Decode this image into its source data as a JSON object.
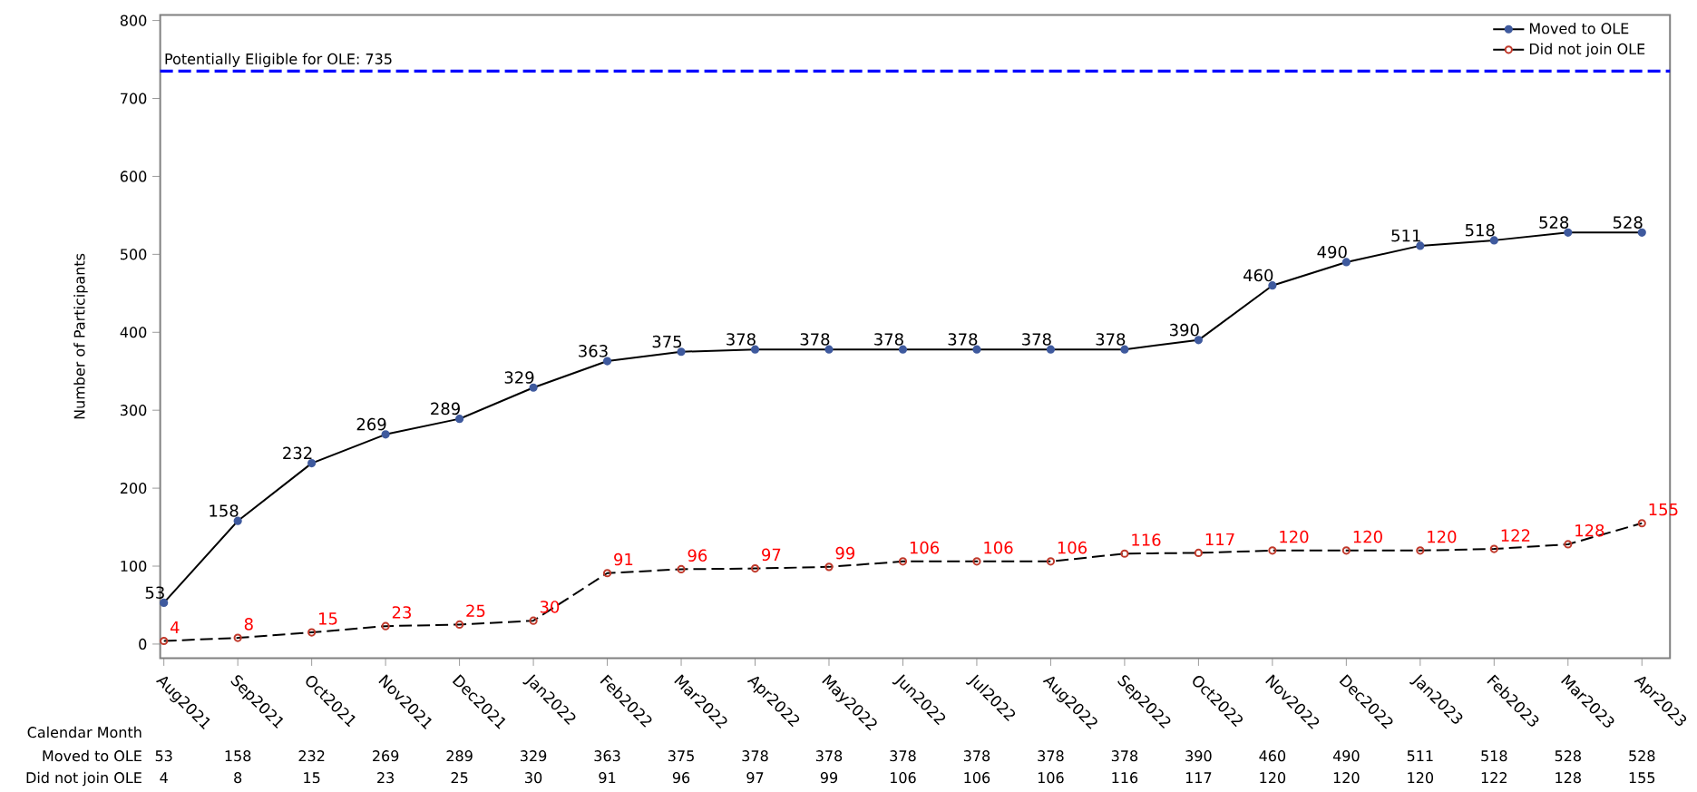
{
  "chart_data": {
    "type": "line",
    "ylabel": "Number of Participants",
    "xlabel": "Calendar Month",
    "categories": [
      "Aug2021",
      "Sep2021",
      "Oct2021",
      "Nov2021",
      "Dec2021",
      "Jan2022",
      "Feb2022",
      "Mar2022",
      "Apr2022",
      "May2022",
      "Jun2022",
      "Jul2022",
      "Aug2022",
      "Sep2022",
      "Oct2022",
      "Nov2022",
      "Dec2022",
      "Jan2023",
      "Feb2023",
      "Mar2023",
      "Apr2023"
    ],
    "series": [
      {
        "name": "Moved to OLE",
        "color": "#000000",
        "line_style": "solid",
        "values": [
          53,
          158,
          232,
          269,
          289,
          329,
          363,
          375,
          378,
          378,
          378,
          378,
          378,
          378,
          390,
          460,
          490,
          511,
          518,
          528,
          528
        ],
        "value_labels": [
          "53",
          "158",
          "232",
          "269",
          "289",
          "329",
          "363",
          "375",
          "378",
          "378",
          "378",
          "378",
          "378",
          "378",
          "390",
          "460",
          "490",
          "511",
          "518",
          "528",
          "528"
        ]
      },
      {
        "name": "Did not join OLE",
        "color": "#000000",
        "line_style": "dashed",
        "values": [
          4,
          8,
          15,
          23,
          25,
          30,
          91,
          96,
          97,
          99,
          106,
          106,
          106,
          116,
          117,
          120,
          120,
          120,
          122,
          128,
          155
        ],
        "value_labels": [
          "4",
          "8",
          "15",
          "23",
          "25",
          "30",
          "91",
          "96",
          "97",
          "99",
          "106",
          "106",
          "106",
          "116",
          "117",
          "120",
          "120",
          "120",
          "122",
          "128",
          "155"
        ]
      }
    ],
    "ylim": [
      -18,
      807
    ],
    "yticks": [
      0,
      100,
      200,
      300,
      400,
      500,
      600,
      700,
      800
    ],
    "ref_lines": [
      {
        "axis": "y",
        "value": 735,
        "label": "Potentially Eligible for OLE:     735",
        "color": "#0000ff",
        "line_style": "dashed"
      }
    ],
    "legend": "top right",
    "marker": "circle",
    "data_labels": true
  }
}
